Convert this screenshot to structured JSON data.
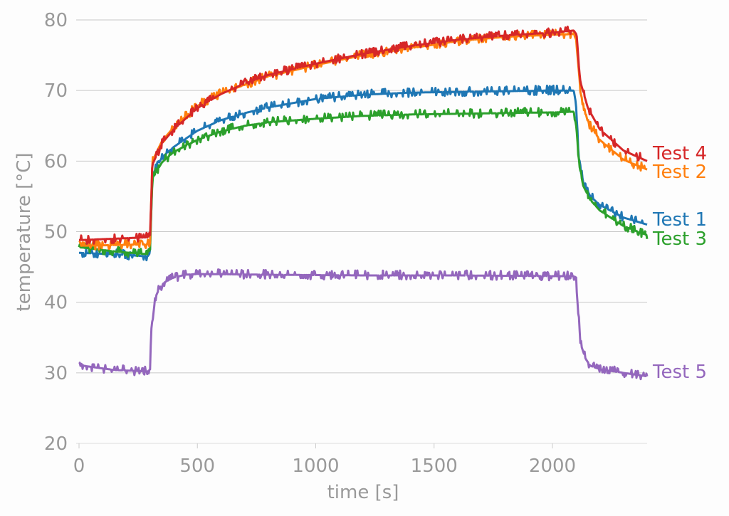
{
  "chart_data": {
    "type": "line",
    "title": "",
    "xlabel": "time [s]",
    "ylabel": "temperature [°C]",
    "xlim": [
      0,
      2400
    ],
    "ylim": [
      20,
      80
    ],
    "xticks": [
      0,
      500,
      1000,
      1500,
      2000
    ],
    "yticks": [
      20,
      30,
      40,
      50,
      60,
      70,
      80
    ],
    "grid": "horizontal",
    "legend": "inline labels at right end of each line",
    "series": [
      {
        "name": "Test 4",
        "color": "#d62728",
        "x": [
          0,
          290,
          300,
          310,
          350,
          400,
          500,
          600,
          700,
          800,
          1000,
          1200,
          1400,
          1600,
          1800,
          2000,
          2090,
          2100,
          2120,
          2150,
          2200,
          2300,
          2400
        ],
        "values": [
          48.8,
          49.2,
          49.5,
          59.5,
          62.5,
          64.5,
          67.5,
          69.5,
          71.0,
          72.2,
          73.8,
          75.2,
          76.3,
          77.2,
          77.8,
          78.2,
          78.5,
          78.0,
          71.0,
          67.5,
          64.5,
          61.5,
          60.0
        ]
      },
      {
        "name": "Test 2",
        "color": "#ff7f0e",
        "x": [
          0,
          290,
          300,
          310,
          350,
          400,
          500,
          600,
          700,
          800,
          1000,
          1200,
          1400,
          1600,
          1800,
          2000,
          2090,
          2100,
          2120,
          2150,
          2200,
          2300,
          2400
        ],
        "values": [
          48.0,
          48.2,
          48.5,
          60.0,
          62.8,
          64.8,
          67.8,
          69.6,
          70.8,
          72.0,
          73.6,
          75.0,
          76.0,
          77.0,
          77.6,
          77.9,
          78.0,
          77.2,
          69.5,
          65.5,
          63.0,
          60.2,
          58.8
        ]
      },
      {
        "name": "Test 1",
        "color": "#1f77b4",
        "x": [
          0,
          150,
          290,
          300,
          310,
          350,
          400,
          500,
          600,
          700,
          800,
          1000,
          1200,
          1400,
          1600,
          1800,
          2000,
          2090,
          2100,
          2110,
          2130,
          2160,
          2200,
          2300,
          2400
        ],
        "values": [
          47.0,
          46.8,
          46.5,
          47.0,
          58.0,
          60.5,
          62.0,
          64.3,
          65.8,
          66.8,
          67.6,
          68.8,
          69.4,
          69.7,
          69.8,
          69.9,
          70.0,
          70.0,
          68.0,
          61.0,
          57.0,
          55.0,
          53.8,
          52.0,
          51.0
        ]
      },
      {
        "name": "Test 3",
        "color": "#2ca02c",
        "x": [
          0,
          150,
          290,
          300,
          310,
          350,
          400,
          500,
          600,
          700,
          800,
          1000,
          1200,
          1400,
          1600,
          1800,
          2000,
          2090,
          2100,
          2110,
          2130,
          2160,
          2200,
          2300,
          2400
        ],
        "values": [
          47.8,
          47.2,
          46.8,
          47.5,
          57.5,
          59.8,
          61.3,
          63.0,
          64.2,
          65.0,
          65.5,
          66.0,
          66.4,
          66.6,
          66.7,
          66.8,
          66.9,
          67.0,
          65.0,
          60.0,
          56.5,
          54.5,
          53.0,
          50.8,
          49.5
        ]
      },
      {
        "name": "Test 5",
        "color": "#9467bd",
        "x": [
          0,
          20,
          60,
          150,
          290,
          300,
          305,
          320,
          340,
          360,
          400,
          450,
          500,
          800,
          1200,
          1600,
          2000,
          2090,
          2100,
          2105,
          2120,
          2140,
          2160,
          2200,
          2300,
          2400
        ],
        "values": [
          31.5,
          31.0,
          30.8,
          30.4,
          30.2,
          30.5,
          36.0,
          40.5,
          42.0,
          42.8,
          43.5,
          43.9,
          44.0,
          43.9,
          43.8,
          43.8,
          43.7,
          43.7,
          43.5,
          40.0,
          34.0,
          32.0,
          31.0,
          30.5,
          30.0,
          29.5
        ]
      }
    ]
  },
  "axes": {
    "x_ticks": [
      "0",
      "500",
      "1000",
      "1500",
      "2000"
    ],
    "y_ticks": [
      "20",
      "30",
      "40",
      "50",
      "60",
      "70",
      "80"
    ],
    "xlabel": "time [s]",
    "ylabel": "temperature [°C]"
  },
  "labels": {
    "test4": "Test 4",
    "test2": "Test 2",
    "test1": "Test 1",
    "test3": "Test 3",
    "test5": "Test 5"
  }
}
